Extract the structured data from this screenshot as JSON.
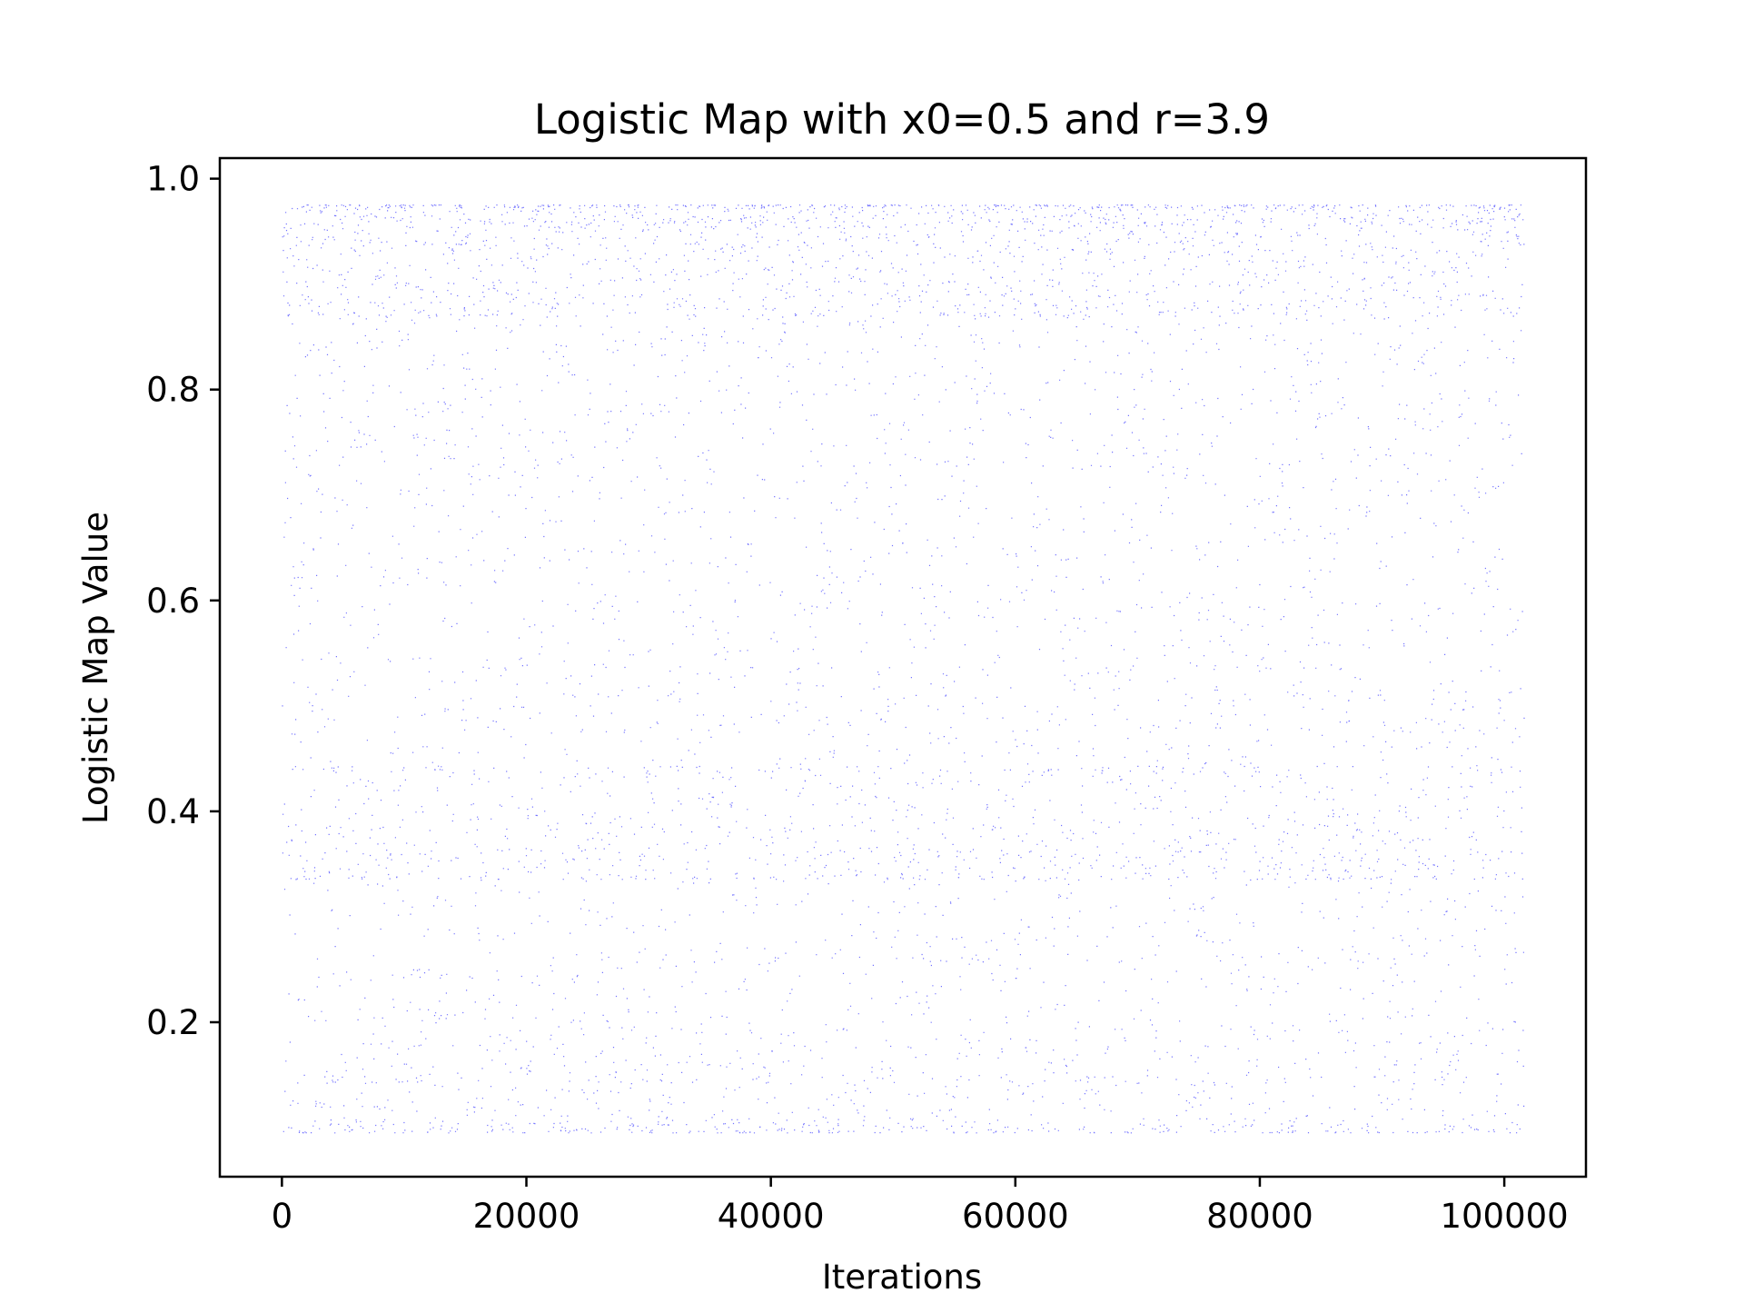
{
  "chart_data": {
    "type": "scatter",
    "title": "Logistic Map with x0=0.5 and r=3.9",
    "xlabel": "Iterations",
    "ylabel": "Logistic Map Value",
    "x0": 0.5,
    "r": 3.9,
    "iterations": 101600,
    "xlim": [
      -5080,
      106680
    ],
    "ylim": [
      0.0535,
      1.0195
    ],
    "x_ticks": [
      0,
      20000,
      40000,
      60000,
      80000,
      100000
    ],
    "x_tick_labels": [
      "0",
      "20000",
      "40000",
      "60000",
      "80000",
      "100000"
    ],
    "y_ticks": [
      0.2,
      0.4,
      0.6,
      0.8,
      1.0
    ],
    "y_tick_labels": [
      "0.2",
      "0.4",
      "0.6",
      "0.8",
      "1.0"
    ],
    "grid": false,
    "legend": "none",
    "marker_color": "#0000ff",
    "series": [
      {
        "x_start": 0,
        "x_end": 101600,
        "y_min": 0.095,
        "y_max": 0.975
      }
    ]
  }
}
